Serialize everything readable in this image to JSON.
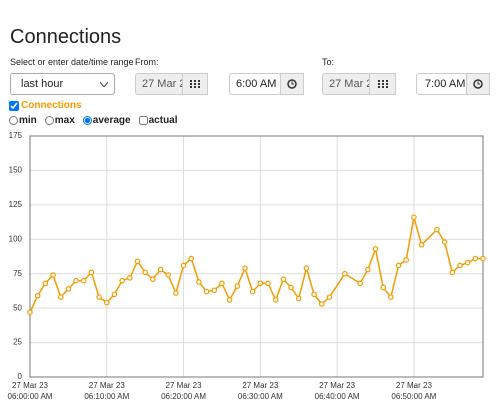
{
  "title": "Connections",
  "range_label": "Select or enter date/time range",
  "range_select": "last hour",
  "from": {
    "label": "From:",
    "date": "27 Mar 2",
    "time": "6:00 AM"
  },
  "to": {
    "label": "To:",
    "date": "27 Mar 2",
    "time": "7:00 AM"
  },
  "series_toggle": "Connections",
  "options": [
    "min",
    "max",
    "average",
    "actual"
  ],
  "chart_data": {
    "type": "line",
    "x": [
      0,
      1,
      2,
      3,
      4,
      5,
      6,
      7,
      8,
      9,
      10,
      11,
      12,
      13,
      14,
      15,
      16,
      17,
      18,
      19,
      20,
      21,
      22,
      23,
      24,
      25,
      26,
      27,
      28,
      29,
      30,
      31,
      32,
      33,
      34,
      35,
      36,
      37,
      38,
      39,
      41,
      43,
      44,
      45,
      46,
      47,
      48,
      49,
      50,
      51,
      53,
      54,
      55,
      56,
      57,
      58,
      59
    ],
    "series": [
      {
        "color": "#f59b00",
        "values": [
          47,
          59,
          68,
          74,
          58,
          64,
          70,
          70,
          76,
          58,
          54,
          60,
          70,
          72,
          84,
          76,
          71,
          78,
          74,
          61,
          81,
          86,
          69,
          62,
          63,
          68,
          56,
          66,
          79,
          62,
          68,
          68,
          56,
          71,
          65,
          57,
          79,
          60,
          53,
          58,
          75,
          68,
          78,
          93,
          65,
          58,
          81,
          85,
          116,
          96,
          107,
          98,
          76,
          81,
          83,
          86,
          86
        ]
      }
    ],
    "xlim": [
      0,
      59
    ],
    "ylim": [
      0,
      175
    ],
    "yticks": [
      0,
      25,
      50,
      75,
      100,
      125,
      150,
      175
    ],
    "xticks": [
      {
        "value": 0,
        "label": [
          "27 Mar 23",
          "06:00:00 AM"
        ]
      },
      {
        "value": 10,
        "label": [
          "27 Mar 23",
          "06:10:00 AM"
        ]
      },
      {
        "value": 20,
        "label": [
          "27 Mar 23",
          "06:20:00 AM"
        ]
      },
      {
        "value": 30,
        "label": [
          "27 Mar 23",
          "06:30:00 AM"
        ]
      },
      {
        "value": 40,
        "label": [
          "27 Mar 23",
          "06:40:00 AM"
        ]
      },
      {
        "value": 50,
        "label": [
          "27 Mar 23",
          "06:50:00 AM"
        ]
      }
    ],
    "grid": true
  }
}
